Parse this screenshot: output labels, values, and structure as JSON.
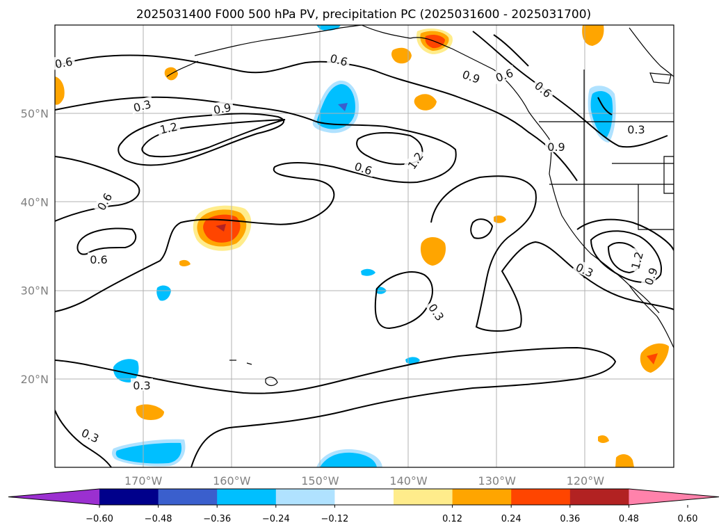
{
  "chart_data": {
    "type": "map-contour",
    "title": "2025031400 F000 500 hPa PV, precipitation PC (2025031600 - 2025031700)",
    "lat_ticks": [
      "50°N",
      "40°N",
      "30°N",
      "20°N"
    ],
    "lon_ticks": [
      "170°W",
      "160°W",
      "150°W",
      "140°W",
      "130°W",
      "120°W"
    ],
    "lon_range": [
      180,
      110
    ],
    "lat_range": [
      10,
      60
    ],
    "grid": true,
    "colorbar": {
      "orientation": "horizontal",
      "extend": "both",
      "ticks": [
        "−0.60",
        "−0.48",
        "−0.36",
        "−0.24",
        "−0.12",
        "0.12",
        "0.24",
        "0.36",
        "0.48",
        "0.60"
      ],
      "colors": [
        "#9b30d0",
        "#00008b",
        "#3a5fcd",
        "#00bfff",
        "#b0e2ff",
        "#ffffff",
        "#ffec8b",
        "#ffa500",
        "#ff4500",
        "#b22222",
        "#ff82ab"
      ]
    },
    "contour_labels": [
      {
        "text": "0.6"
      },
      {
        "text": "0.3"
      },
      {
        "text": "0.9"
      },
      {
        "text": "1.2"
      },
      {
        "text": "0.6"
      },
      {
        "text": "0.6"
      },
      {
        "text": "0.9"
      },
      {
        "text": "0.6"
      },
      {
        "text": "0.6"
      },
      {
        "text": "1.2"
      },
      {
        "text": "0.3"
      },
      {
        "text": "0.9"
      },
      {
        "text": "0.6"
      },
      {
        "text": "0.6"
      },
      {
        "text": "0.3"
      },
      {
        "text": "0.3"
      },
      {
        "text": "1.2"
      },
      {
        "text": "0.9"
      },
      {
        "text": "0.3"
      },
      {
        "text": "0.3"
      }
    ]
  }
}
